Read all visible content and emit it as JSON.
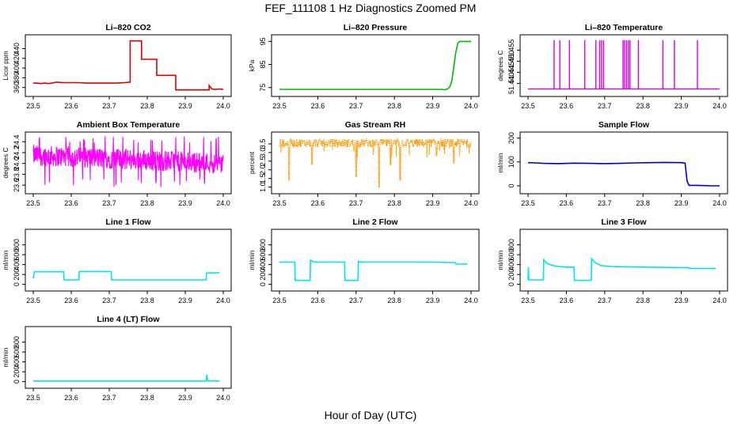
{
  "page": {
    "title": "FEF_111108  1 Hz Diagnostics Zoomed PM",
    "xlabel": "Hour of Day (UTC)"
  },
  "chart_data": [
    {
      "type": "line",
      "title": "Li–820 CO2",
      "ylabel": "Licor ppm",
      "xlim": [
        23.5,
        24.0
      ],
      "ylim": [
        348,
        462
      ],
      "xticks": [
        "23.5",
        "23.6",
        "23.7",
        "23.8",
        "23.9",
        "24.0"
      ],
      "yticks": [
        "360",
        "380",
        "400",
        "420",
        "440"
      ],
      "color": "#dd0000",
      "series": [
        {
          "x": [
            23.5,
            23.51,
            23.52,
            23.53,
            23.54,
            23.55,
            23.555,
            23.56,
            23.58,
            23.6,
            23.62,
            23.64,
            23.66,
            23.68,
            23.7,
            23.72,
            23.74,
            23.755,
            23.755,
            23.77,
            23.78,
            23.785,
            23.785,
            23.8,
            23.82,
            23.825,
            23.825,
            23.84,
            23.86,
            23.87,
            23.875,
            23.875,
            23.9,
            23.92,
            23.94,
            23.96,
            23.963,
            23.963,
            23.97,
            23.98,
            23.99,
            24.0
          ],
          "y": [
            369,
            369,
            368,
            369,
            368,
            369,
            370,
            371,
            370,
            370,
            370,
            369,
            369,
            369,
            369,
            369,
            370,
            371,
            456,
            456,
            456,
            456,
            418,
            418,
            418,
            418,
            385,
            385,
            385,
            385,
            385,
            355,
            355,
            355,
            355,
            355,
            355,
            364,
            357,
            356,
            357,
            356
          ]
        }
      ]
    },
    {
      "type": "line",
      "title": "Li–820 Pressure",
      "ylabel": "kPa",
      "xlim": [
        23.5,
        24.0
      ],
      "ylim": [
        72.5,
        96.5
      ],
      "xticks": [
        "23.5",
        "23.6",
        "23.7",
        "23.8",
        "23.9",
        "24.0"
      ],
      "yticks": [
        "75",
        "85",
        "95"
      ],
      "color": "#00bb00",
      "series": [
        {
          "x": [
            23.5,
            23.6,
            23.7,
            23.8,
            23.9,
            23.925,
            23.93,
            23.94,
            23.945,
            23.95,
            23.955,
            23.96,
            23.965,
            23.97,
            23.98,
            24.0
          ],
          "y": [
            74.2,
            74.2,
            74.2,
            74.2,
            74.2,
            74.2,
            74.0,
            74.5,
            75.5,
            78,
            84,
            90,
            94,
            95,
            95,
            95
          ]
        }
      ]
    },
    {
      "type": "line",
      "title": "Li–820 Temperature",
      "ylabel": "degrees C",
      "xlim": [
        23.5,
        24.0
      ],
      "ylim": [
        51.4355,
        51.4605
      ],
      "xticks": [
        "23.5",
        "23.6",
        "23.7",
        "23.8",
        "23.9",
        "24.0"
      ],
      "yticks": [
        "51.440",
        "51.445",
        "51.450",
        "51.455"
      ],
      "color": "#dd00dd",
      "baseline": 51.4375,
      "spikes": [
        23.568,
        23.583,
        23.608,
        23.648,
        23.677,
        23.687,
        23.692,
        23.697,
        23.748,
        23.752,
        23.757,
        23.762,
        23.766,
        23.788,
        23.852,
        23.882,
        23.942
      ],
      "spike_value": 51.4595
    },
    {
      "type": "line",
      "title": "Ambient Box Temperature",
      "ylabel": "degrees C",
      "xlim": [
        23.5,
        24.0
      ],
      "ylim": [
        23.5,
        24.52
      ],
      "xticks": [
        "23.5",
        "23.6",
        "23.7",
        "23.8",
        "23.9",
        "24.0"
      ],
      "yticks": [
        "23.6",
        "23.8",
        "24.0",
        "24.2",
        "24.4"
      ],
      "color": "#ff00ff",
      "band": {
        "center_start": 24.15,
        "center_end": 24.0,
        "halfwidth": 0.12,
        "spikes_low": 23.56,
        "spikes_high": 24.5
      }
    },
    {
      "type": "line",
      "title": "Gas Stream RH",
      "ylabel": "percent",
      "xlim": [
        23.5,
        24.0
      ],
      "ylim": [
        0.8,
        4.0
      ],
      "xticks": [
        "23.5",
        "23.6",
        "23.7",
        "23.8",
        "23.9",
        "24.0"
      ],
      "yticks": [
        "1.0",
        "1.5",
        "2.0",
        "2.5",
        "3.0",
        "3.5"
      ],
      "color": "#ff9900",
      "band": {
        "low": 3.3,
        "high": 3.8
      },
      "dips": [
        {
          "x": 23.525,
          "y": 1.4
        },
        {
          "x": 23.585,
          "y": 2.3
        },
        {
          "x": 23.7,
          "y": 1.6
        },
        {
          "x": 23.76,
          "y": 1.0
        },
        {
          "x": 23.79,
          "y": 2.3
        },
        {
          "x": 23.815,
          "y": 1.4
        },
        {
          "x": 23.91,
          "y": 2.8
        },
        {
          "x": 23.955,
          "y": 2.4
        }
      ]
    },
    {
      "type": "line",
      "title": "Sample Flow",
      "ylabel": "ml/min",
      "xlim": [
        23.5,
        24.0
      ],
      "ylim": [
        -20,
        212
      ],
      "xticks": [
        "23.5",
        "23.6",
        "23.7",
        "23.8",
        "23.9",
        "24.0"
      ],
      "yticks": [
        "0",
        "100",
        "200"
      ],
      "color": "#0000cc",
      "series": [
        {
          "x": [
            23.5,
            23.52,
            23.54,
            23.58,
            23.62,
            23.66,
            23.7,
            23.74,
            23.78,
            23.82,
            23.86,
            23.9,
            23.91,
            23.915,
            23.92,
            23.94,
            23.96,
            23.98,
            24.0
          ],
          "y": [
            97,
            96,
            94,
            93,
            95,
            94,
            93,
            94,
            96,
            97,
            98,
            97,
            95,
            20,
            2,
            2,
            1,
            0,
            0
          ]
        }
      ]
    },
    {
      "type": "line",
      "title": "Line 1 Flow",
      "ylabel": "ml/min",
      "xlim": [
        23.5,
        24.0
      ],
      "ylim": [
        -70,
        1050
      ],
      "xticks": [
        "23.5",
        "23.6",
        "23.7",
        "23.8",
        "23.9",
        "24.0"
      ],
      "yticks": [
        "0",
        "200",
        "400",
        "600",
        "800"
      ],
      "color": "#00e5e5",
      "series": [
        {
          "x": [
            23.5,
            23.503,
            23.58,
            23.581,
            23.62,
            23.621,
            23.705,
            23.706,
            23.76,
            23.8,
            23.9,
            23.955,
            23.956,
            23.99
          ],
          "y": [
            120,
            255,
            255,
            90,
            90,
            260,
            260,
            90,
            90,
            90,
            90,
            90,
            230,
            235
          ]
        }
      ]
    },
    {
      "type": "line",
      "title": "Line 2 Flow",
      "ylabel": "ml/min",
      "xlim": [
        23.5,
        24.0
      ],
      "ylim": [
        -70,
        1050
      ],
      "xticks": [
        "23.5",
        "23.6",
        "23.7",
        "23.8",
        "23.9",
        "24.0"
      ],
      "yticks": [
        "0",
        "200",
        "400",
        "600",
        "800"
      ],
      "color": "#00e5e5",
      "series": [
        {
          "x": [
            23.5,
            23.54,
            23.541,
            23.58,
            23.581,
            23.59,
            23.67,
            23.671,
            23.705,
            23.706,
            23.72,
            23.8,
            23.9,
            23.96,
            23.961,
            23.99
          ],
          "y": [
            450,
            450,
            80,
            80,
            490,
            450,
            450,
            80,
            80,
            460,
            450,
            450,
            450,
            440,
            410,
            410
          ]
        }
      ]
    },
    {
      "type": "line",
      "title": "Line 3 Flow",
      "ylabel": "ml/min",
      "xlim": [
        23.5,
        24.0
      ],
      "ylim": [
        -70,
        1050
      ],
      "xticks": [
        "23.5",
        "23.6",
        "23.7",
        "23.8",
        "23.9",
        "24.0"
      ],
      "yticks": [
        "0",
        "200",
        "400",
        "600",
        "800"
      ],
      "color": "#00e5e5",
      "series": [
        {
          "x": [
            23.5,
            23.501,
            23.502,
            23.54,
            23.541,
            23.55,
            23.57,
            23.6,
            23.62,
            23.621,
            23.665,
            23.666,
            23.675,
            23.69,
            23.72,
            23.8,
            23.9,
            23.92,
            23.921,
            23.99
          ],
          "y": [
            90,
            350,
            90,
            90,
            500,
            420,
            370,
            350,
            350,
            80,
            80,
            520,
            440,
            380,
            360,
            350,
            340,
            340,
            320,
            320
          ]
        }
      ]
    },
    {
      "type": "line",
      "title": "Line 4 (LT) Flow",
      "ylabel": "ml/min",
      "xlim": [
        23.5,
        24.0
      ],
      "ylim": [
        -70,
        1050
      ],
      "xticks": [
        "23.5",
        "23.6",
        "23.7",
        "23.8",
        "23.9",
        "24.0"
      ],
      "yticks": [
        "0",
        "200",
        "400",
        "600",
        "800"
      ],
      "color": "#00e5e5",
      "series": [
        {
          "x": [
            23.5,
            23.6,
            23.7,
            23.8,
            23.9,
            23.955,
            23.957,
            23.958,
            23.96,
            23.99
          ],
          "y": [
            12,
            12,
            12,
            12,
            12,
            12,
            140,
            60,
            15,
            12
          ]
        }
      ]
    }
  ]
}
